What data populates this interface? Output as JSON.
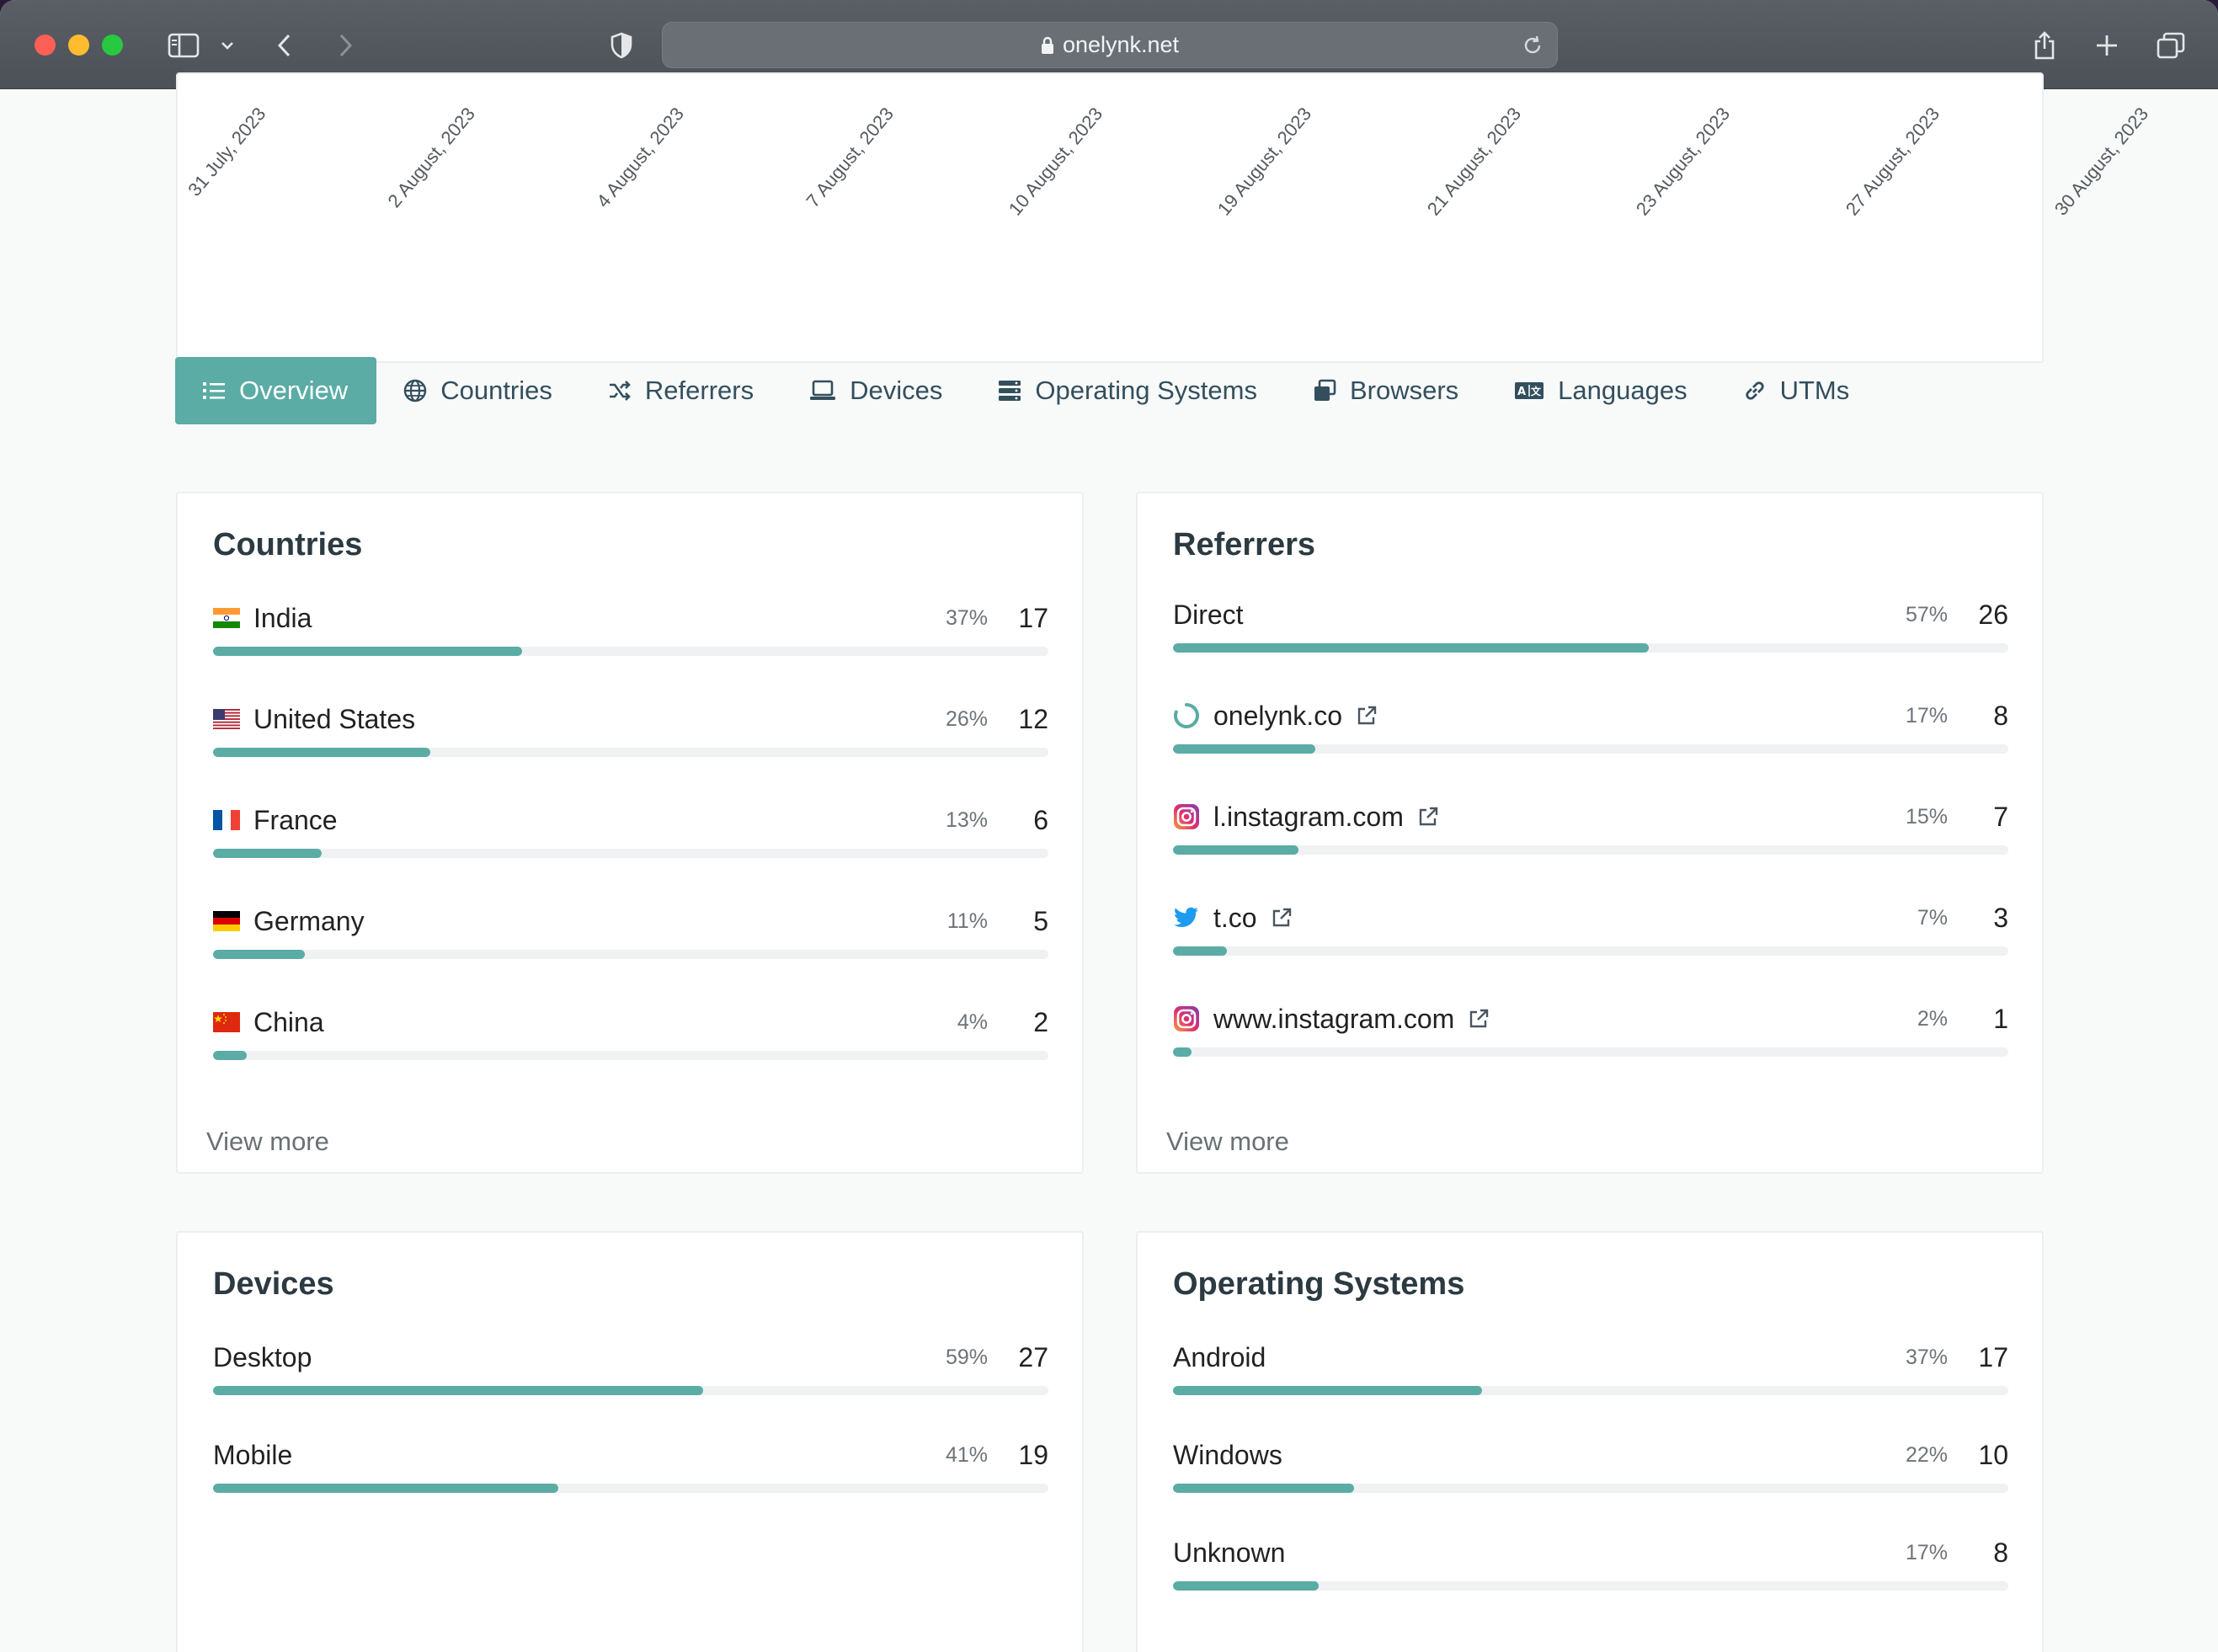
{
  "browser": {
    "url": "onelynk.net"
  },
  "chart": {
    "x_labels": [
      "31 July, 2023",
      "2 August, 2023",
      "4 August, 2023",
      "7 August, 2023",
      "10 August, 2023",
      "19 August, 2023",
      "21 August, 2023",
      "23 August, 2023",
      "27 August, 2023",
      "30 August, 2023"
    ]
  },
  "tabs": [
    {
      "label": "Overview",
      "icon": "list-icon",
      "active": true
    },
    {
      "label": "Countries",
      "icon": "globe-icon",
      "active": false
    },
    {
      "label": "Referrers",
      "icon": "shuffle-icon",
      "active": false
    },
    {
      "label": "Devices",
      "icon": "laptop-icon",
      "active": false
    },
    {
      "label": "Operating Systems",
      "icon": "server-icon",
      "active": false
    },
    {
      "label": "Browsers",
      "icon": "windows-icon",
      "active": false
    },
    {
      "label": "Languages",
      "icon": "language-icon",
      "active": false
    },
    {
      "label": "UTMs",
      "icon": "link-icon",
      "active": false
    }
  ],
  "countries": {
    "title": "Countries",
    "view_more": "View more",
    "rows": [
      {
        "label": "India",
        "flag": "india-flag",
        "pct": "37%",
        "count": "17",
        "fill": 0.37
      },
      {
        "label": "United States",
        "flag": "us-flag",
        "pct": "26%",
        "count": "12",
        "fill": 0.26
      },
      {
        "label": "France",
        "flag": "france-flag",
        "pct": "13%",
        "count": "6",
        "fill": 0.13
      },
      {
        "label": "Germany",
        "flag": "germany-flag",
        "pct": "11%",
        "count": "5",
        "fill": 0.11
      },
      {
        "label": "China",
        "flag": "china-flag",
        "pct": "4%",
        "count": "2",
        "fill": 0.04
      }
    ]
  },
  "referrers": {
    "title": "Referrers",
    "view_more": "View more",
    "rows": [
      {
        "label": "Direct",
        "icon": "",
        "pct": "57%",
        "count": "26",
        "fill": 0.57
      },
      {
        "label": "onelynk.co",
        "icon": "onelynk-icon",
        "pct": "17%",
        "count": "8",
        "fill": 0.17
      },
      {
        "label": "l.instagram.com",
        "icon": "instagram-icon",
        "pct": "15%",
        "count": "7",
        "fill": 0.15
      },
      {
        "label": "t.co",
        "icon": "twitter-icon",
        "pct": "7%",
        "count": "3",
        "fill": 0.065
      },
      {
        "label": "www.instagram.com",
        "icon": "instagram-icon",
        "pct": "2%",
        "count": "1",
        "fill": 0.022
      }
    ]
  },
  "devices": {
    "title": "Devices",
    "rows": [
      {
        "label": "Desktop",
        "pct": "59%",
        "count": "27",
        "fill": 0.587
      },
      {
        "label": "Mobile",
        "pct": "41%",
        "count": "19",
        "fill": 0.413
      }
    ]
  },
  "operating_systems": {
    "title": "Operating Systems",
    "rows": [
      {
        "label": "Android",
        "pct": "37%",
        "count": "17",
        "fill": 0.37
      },
      {
        "label": "Windows",
        "pct": "22%",
        "count": "10",
        "fill": 0.217
      },
      {
        "label": "Unknown",
        "pct": "17%",
        "count": "8",
        "fill": 0.174
      }
    ]
  },
  "colors": {
    "accent": "#5aaca5",
    "track": "#f0f1f2"
  }
}
